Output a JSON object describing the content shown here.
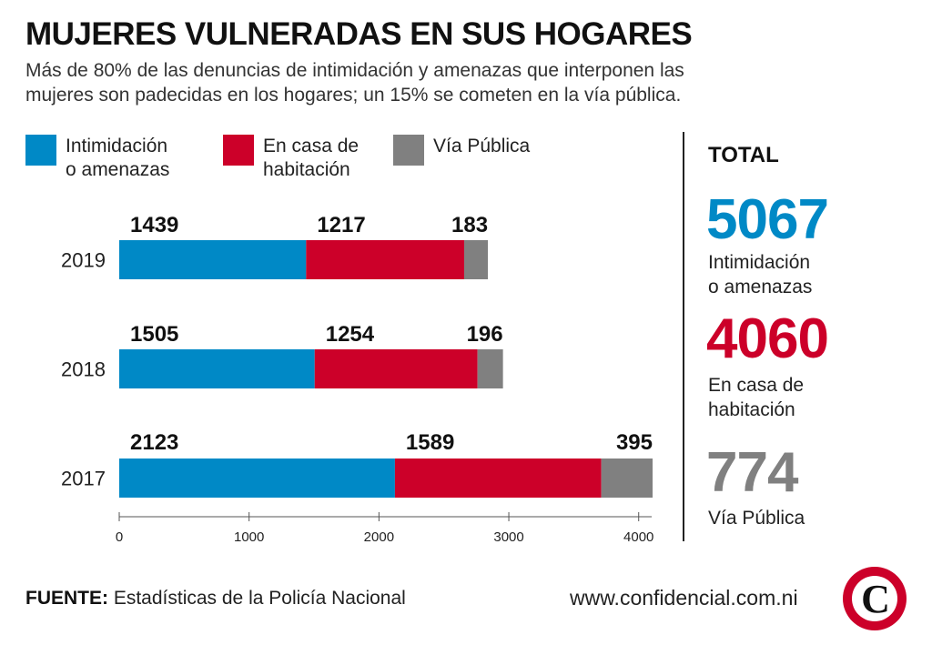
{
  "title": "MUJERES VULNERADAS EN SUS HOGARES",
  "subtitle": "Más de 80% de las denuncias de intimidación y amenazas que interponen las mujeres son padecidas en los hogares; un 15% se cometen en la vía pública.",
  "legend": [
    {
      "label": "Intimidación\no amenazas",
      "color": "#0089c6"
    },
    {
      "label": "En casa de\nhabitación",
      "color": "#cc0029"
    },
    {
      "label": "Vía Pública",
      "color": "#808080"
    }
  ],
  "chart_data": {
    "type": "bar",
    "orientation": "horizontal",
    "stacked": true,
    "categories": [
      "2019",
      "2018",
      "2017"
    ],
    "series": [
      {
        "name": "Intimidación o amenazas",
        "values": [
          1439,
          1505,
          2123
        ],
        "color": "#0089c6"
      },
      {
        "name": "En casa de habitación",
        "values": [
          1217,
          1254,
          1589
        ],
        "color": "#cc0029"
      },
      {
        "name": "Vía Pública",
        "values": [
          183,
          196,
          395
        ],
        "color": "#808080"
      }
    ],
    "xlim": [
      0,
      4100
    ],
    "xticks": [
      0,
      1000,
      2000,
      3000,
      4000
    ],
    "grid": false,
    "legend_position": "top"
  },
  "totals": {
    "heading": "TOTAL",
    "items": [
      {
        "value": "5067",
        "label": "Intimidación\no amenazas",
        "color": "#0089c6"
      },
      {
        "value": "4060",
        "label": "En casa de\nhabitación",
        "color": "#cc0029"
      },
      {
        "value": "774",
        "label": "Vía Pública",
        "color": "#808080"
      }
    ]
  },
  "source": {
    "prefix": "FUENTE:",
    "text": " Estadísticas de la Policía Nacional"
  },
  "website": "www.confidencial.com.ni",
  "logo": {
    "letter": "C",
    "color": "#cc0029"
  }
}
